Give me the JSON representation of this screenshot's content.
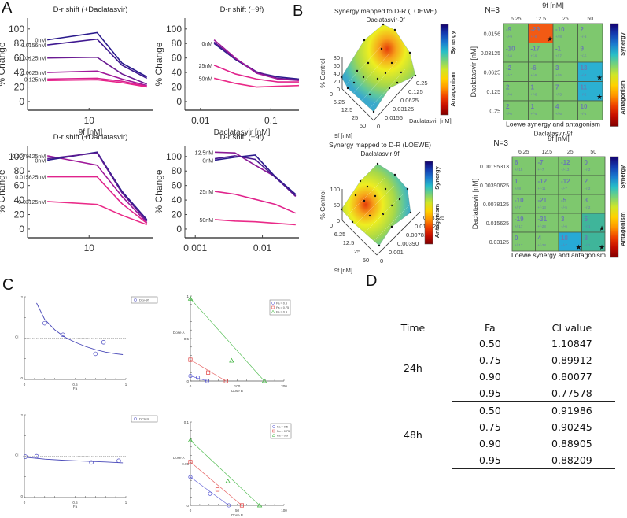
{
  "panels": {
    "A": "A",
    "B": "B",
    "C": "C",
    "D": "D"
  },
  "chart_data": [
    {
      "id": "A1",
      "type": "line",
      "title": "D-r shift (+Daclatasvir)",
      "xlabel": "9f [nM]",
      "ylabel": "% Change",
      "xscale": "log",
      "xticks": [
        "10"
      ],
      "yticks": [
        0,
        20,
        40,
        60,
        80,
        100
      ],
      "ylim": [
        -12,
        115
      ],
      "x": [
        3.125,
        12.5,
        25,
        50
      ],
      "series": [
        {
          "name": "0nM",
          "color": "#2a1a8c",
          "values": [
            85,
            95,
            53,
            34
          ]
        },
        {
          "name": "0.0156nM",
          "color": "#3f1890",
          "values": [
            78,
            86,
            50,
            32
          ]
        },
        {
          "name": "0.03125nM",
          "color": "#6a1a92",
          "values": [
            60,
            61,
            38,
            24
          ]
        },
        {
          "name": "0.0625nM",
          "color": "#a0199a",
          "values": [
            40,
            42,
            31,
            22
          ]
        },
        {
          "name": "0.125nM",
          "color": "#d8208f",
          "values": [
            31,
            32,
            28,
            21
          ]
        },
        {
          "name": "",
          "color": "#e8238a",
          "values": [
            29,
            30,
            26,
            20
          ]
        }
      ]
    },
    {
      "id": "A2",
      "type": "line",
      "title": "D-r shift (+9f)",
      "xlabel": "Daclatasvir [nM]",
      "ylabel": "% Change",
      "xscale": "log",
      "xticks": [
        "0.01",
        "0.1"
      ],
      "yticks": [
        0,
        20,
        40,
        60,
        80,
        100
      ],
      "ylim": [
        -12,
        115
      ],
      "x": [
        0.0156,
        0.03125,
        0.0625,
        0.125,
        0.25
      ],
      "series": [
        {
          "name": "0nM",
          "color": "#2a1a8c",
          "values": [
            80,
            58,
            40,
            34,
            31
          ]
        },
        {
          "name": "",
          "color": "#5b1a92",
          "values": [
            82,
            59,
            41,
            32,
            30
          ]
        },
        {
          "name": "",
          "color": "#a0199a",
          "values": [
            85,
            60,
            39,
            31,
            29
          ]
        },
        {
          "name": "25nM",
          "color": "#e0238c",
          "values": [
            50,
            38,
            31,
            27,
            27
          ]
        },
        {
          "name": "50nM",
          "color": "#ea2a88",
          "values": [
            32,
            25,
            20,
            21,
            22
          ]
        }
      ]
    },
    {
      "id": "A3",
      "type": "line",
      "title": "D-r shift (+Daclatasvir)",
      "xlabel": "9f [nM]",
      "ylabel": "% Change",
      "xscale": "log",
      "xticks": [
        "10"
      ],
      "yticks": [
        0,
        20,
        40,
        60,
        80,
        100
      ],
      "ylim": [
        -12,
        115
      ],
      "x": [
        3.125,
        12.5,
        25,
        50
      ],
      "series": [
        {
          "name": "0.0078125nM",
          "color": "#a0199a",
          "values": [
            101,
            88,
            45,
            9
          ]
        },
        {
          "name": "0nM",
          "color": "#2a1a8c",
          "values": [
            95,
            106,
            52,
            13
          ]
        },
        {
          "name": "",
          "color": "#5b1a92",
          "values": [
            97,
            105,
            50,
            11
          ]
        },
        {
          "name": "0.015625nM",
          "color": "#e0238c",
          "values": [
            72,
            72,
            35,
            8
          ]
        },
        {
          "name": "0.03125nM",
          "color": "#ea2a88",
          "values": [
            38,
            34,
            19,
            6
          ]
        }
      ]
    },
    {
      "id": "A4",
      "type": "line",
      "title": "D-r shift (+9f)",
      "xlabel": "Daclatasvir [nM]",
      "ylabel": "% Change",
      "xscale": "log",
      "xticks": [
        "0.001",
        "0.01"
      ],
      "yticks": [
        0,
        20,
        40,
        60,
        80,
        100
      ],
      "ylim": [
        -12,
        115
      ],
      "x": [
        0.00195313,
        0.00390625,
        0.0078125,
        0.015625,
        0.03125
      ],
      "series": [
        {
          "name": "12.5nM",
          "color": "#8a1a96",
          "values": [
            106,
            105,
            88,
            72,
            45
          ]
        },
        {
          "name": "0nM",
          "color": "#2a1a8c",
          "values": [
            95,
            99,
            102,
            72,
            48
          ]
        },
        {
          "name": "",
          "color": "#4a1a90",
          "values": [
            97,
            101,
            96,
            71,
            46
          ]
        },
        {
          "name": "25nM",
          "color": "#e0238c",
          "values": [
            52,
            48,
            41,
            34,
            22
          ]
        },
        {
          "name": "50nM",
          "color": "#ea2a88",
          "values": [
            13,
            11,
            10,
            8,
            6
          ]
        }
      ]
    },
    {
      "id": "B1",
      "type": "heatmap",
      "title": "Synergy mapped to D-R (LOEWE)",
      "subtitle": "Daclatasvir-9f",
      "zlabel": "% Control",
      "xlabel": "9f [nM]",
      "ylabel": "Daclatasvir [nM]",
      "zticks": [
        "0",
        "20",
        "40",
        "60",
        "80"
      ],
      "xticks": [
        "0",
        "6.25",
        "12.5",
        "25",
        "50"
      ],
      "yticks": [
        "0",
        "0.0156",
        "0.03125",
        "0.0625",
        "0.125",
        "0.25"
      ],
      "colorbar": {
        "top": "Synergy",
        "bottom": "Antagonism"
      }
    },
    {
      "id": "B2",
      "type": "heatmap",
      "title": "N=3",
      "xlabel": "9f [nM]",
      "ylabel": "Daclatasvir [nM]",
      "footer": "Loewe synergy and antagonism",
      "subtitle": "Daclatasvir-9f",
      "columns": [
        "6.25",
        "12.5",
        "25",
        "50"
      ],
      "rows": [
        "0.0156",
        "0.03125",
        "0.0625",
        "0.125",
        "0.25"
      ],
      "values": [
        [
          -9,
          -29,
          -10,
          2
        ],
        [
          -10,
          -17,
          -1,
          9
        ],
        [
          -2,
          -6,
          3,
          13
        ],
        [
          2,
          1,
          7,
          11
        ],
        [
          2,
          1,
          4,
          10
        ]
      ],
      "errors": [
        [
          "+/-9",
          "+/-8",
          "+/-8",
          "+/-6"
        ],
        [
          "+/-8",
          "+/-9",
          "+/-7",
          "+/-5"
        ],
        [
          "+/-7",
          "+/-5",
          "+/-5",
          "+/-3"
        ],
        [
          "+/-6",
          "+/-6",
          "+/-5",
          "+/-2"
        ],
        [
          "+/-6",
          "+/-4",
          "+/-6",
          "+/-4"
        ]
      ],
      "significant": [
        [
          false,
          true,
          false,
          false
        ],
        [
          false,
          false,
          false,
          false
        ],
        [
          false,
          false,
          false,
          true
        ],
        [
          false,
          false,
          false,
          true
        ],
        [
          false,
          false,
          false,
          false
        ]
      ],
      "colorbar": {
        "top": "Synergy",
        "bottom": "Antagonism"
      }
    },
    {
      "id": "B3",
      "type": "heatmap",
      "title": "Synergy mapped to D-R (LOEWE)",
      "subtitle": "Daclatasvir-9f",
      "zlabel": "% Control",
      "xlabel": "9f [nM]",
      "ylabel": "Daclatasvir [nM]",
      "zticks": [
        "0",
        "50",
        "100"
      ],
      "xticks": [
        "0",
        "6.25",
        "12.5",
        "25",
        "50"
      ],
      "yticks": [
        "0",
        "0.001",
        "0.00390",
        "0.0078125",
        "0.015625",
        "0.03125"
      ],
      "colorbar": {
        "top": "Synergy",
        "bottom": "Antagonism"
      }
    },
    {
      "id": "B4",
      "type": "heatmap",
      "title": "N=3",
      "xlabel": "9f [nM]",
      "ylabel": "Daclatasvir [nM]",
      "footer": "Loewe synergy and antagonism",
      "subtitle": "Daclatasvir-9f",
      "columns": [
        "6.25",
        "12.5",
        "25",
        "50"
      ],
      "rows": [
        "0.00195313",
        "0.00390625",
        "0.0078125",
        "0.015625",
        "0.03125"
      ],
      "values": [
        [
          6,
          -7,
          -12,
          0
        ],
        [
          1,
          -12,
          -12,
          2
        ],
        [
          -10,
          -21,
          -5,
          3
        ],
        [
          -19,
          -31,
          3,
          5
        ],
        [
          0,
          4,
          18,
          8
        ]
      ],
      "errors": [
        [
          "+/-15",
          "+/-7",
          "+/-13",
          "+/-2"
        ],
        [
          "+/-8",
          "+/-11",
          "+/-7",
          "+/-2"
        ],
        [
          "+/-7",
          "+/-13",
          "+/-5",
          "+/-2"
        ],
        [
          "+/-17",
          "+/-28",
          "+/-6",
          "+/-1"
        ],
        [
          "+/-17",
          "+/-28",
          "+/-7",
          "+/-1"
        ]
      ],
      "significant": [
        [
          false,
          false,
          false,
          false
        ],
        [
          false,
          false,
          false,
          false
        ],
        [
          false,
          false,
          false,
          false
        ],
        [
          false,
          false,
          false,
          true
        ],
        [
          false,
          false,
          true,
          true
        ]
      ],
      "colorbar": {
        "top": "Synergy",
        "bottom": "Antagonism"
      }
    },
    {
      "id": "C1",
      "type": "scatter",
      "xlabel": "Fa",
      "ylabel": "CI",
      "xlim": [
        0,
        1
      ],
      "ylim": [
        0,
        2
      ],
      "xticks": [
        "0",
        "0.5",
        "1"
      ],
      "yticks": [
        "0",
        "2"
      ],
      "legend": "Dcv-9f",
      "reference_line": 1,
      "points": [
        [
          0.2,
          1.36
        ],
        [
          0.38,
          1.08
        ],
        [
          0.7,
          0.62
        ],
        [
          0.78,
          0.9
        ]
      ],
      "curve": [
        [
          0.12,
          1.85
        ],
        [
          0.2,
          1.45
        ],
        [
          0.3,
          1.2
        ],
        [
          0.4,
          1.02
        ],
        [
          0.5,
          0.9
        ],
        [
          0.6,
          0.8
        ],
        [
          0.7,
          0.72
        ],
        [
          0.8,
          0.66
        ],
        [
          0.9,
          0.62
        ],
        [
          0.97,
          0.6
        ]
      ]
    },
    {
      "id": "C2",
      "type": "scatter",
      "xlabel": "Dose B",
      "ylabel": "Dose A",
      "xlim": [
        0,
        200
      ],
      "ylim": [
        0,
        1
      ],
      "xticks": [
        "0",
        "100",
        "200"
      ],
      "yticks": [
        "0",
        "0.5",
        "1"
      ],
      "legend": [
        "Fa = 0.5",
        "Fa = 0.75",
        "Fa = 0.9"
      ],
      "series": [
        {
          "name": "Fa = 0.5",
          "color": "#4a4ad0",
          "marker": "circle",
          "line": [
            [
              0,
              0.06
            ],
            [
              36,
              0
            ]
          ],
          "points": [
            [
              0,
              0.06
            ],
            [
              16,
              0.04
            ],
            [
              36,
              0
            ]
          ]
        },
        {
          "name": "Fa = 0.75",
          "color": "#e04040",
          "marker": "square",
          "line": [
            [
              0,
              0.25
            ],
            [
              76,
              0
            ]
          ],
          "points": [
            [
              0,
              0.25
            ],
            [
              38,
              0.1
            ],
            [
              76,
              0
            ]
          ]
        },
        {
          "name": "Fa = 0.9",
          "color": "#30b030",
          "marker": "triangle",
          "line": [
            [
              0,
              0.97
            ],
            [
              158,
              0
            ]
          ],
          "points": [
            [
              0,
              0.97
            ],
            [
              88,
              0.24
            ],
            [
              158,
              0
            ]
          ]
        }
      ]
    },
    {
      "id": "C3",
      "type": "scatter",
      "xlabel": "Fa",
      "ylabel": "CI",
      "xlim": [
        0,
        1
      ],
      "ylim": [
        0,
        2
      ],
      "xticks": [
        "0",
        "0.5",
        "1"
      ],
      "yticks": [
        "0",
        "2"
      ],
      "legend": "DCV-9f",
      "reference_line": 1,
      "points": [
        [
          0.01,
          0.99
        ],
        [
          0.12,
          1.0
        ],
        [
          0.66,
          0.85
        ],
        [
          0.93,
          0.89
        ]
      ],
      "curve": [
        [
          0.03,
          0.97
        ],
        [
          0.2,
          0.93
        ],
        [
          0.4,
          0.9
        ],
        [
          0.6,
          0.88
        ],
        [
          0.8,
          0.86
        ],
        [
          0.97,
          0.84
        ]
      ]
    },
    {
      "id": "C4",
      "type": "scatter",
      "xlabel": "Dose B",
      "ylabel": "Dose A",
      "xlim": [
        0,
        100
      ],
      "ylim": [
        0,
        0.1
      ],
      "xticks": [
        "0",
        "50",
        "100"
      ],
      "yticks": [
        "0",
        "0.05",
        "0.1"
      ],
      "legend": [
        "Fa = 0.5",
        "Fa = 0.75",
        "Fa = 0.9"
      ],
      "series": [
        {
          "name": "Fa = 0.5",
          "color": "#4a4ad0",
          "marker": "circle",
          "line": [
            [
              0,
              0.034
            ],
            [
              41,
              0
            ]
          ],
          "points": [
            [
              0,
              0.034
            ],
            [
              21,
              0.014
            ],
            [
              41,
              0
            ]
          ]
        },
        {
          "name": "Fa = 0.75",
          "color": "#e04040",
          "marker": "square",
          "line": [
            [
              0,
              0.052
            ],
            [
              55,
              0
            ]
          ],
          "points": [
            [
              0,
              0.052
            ],
            [
              29,
              0.019
            ],
            [
              55,
              0
            ]
          ]
        },
        {
          "name": "Fa = 0.9",
          "color": "#30b030",
          "marker": "triangle",
          "line": [
            [
              0,
              0.078
            ],
            [
              74,
              0
            ]
          ],
          "points": [
            [
              0,
              0.078
            ],
            [
              40,
              0.029
            ],
            [
              74,
              0
            ]
          ]
        }
      ]
    },
    {
      "id": "D",
      "type": "table",
      "columns": [
        "Time",
        "Fa",
        "CI value"
      ],
      "groups": [
        {
          "time": "24h",
          "rows": [
            [
              "0.50",
              "1.10847"
            ],
            [
              "0.75",
              "0.89912"
            ],
            [
              "0.90",
              "0.80077"
            ],
            [
              "0.95",
              "0.77578"
            ]
          ]
        },
        {
          "time": "48h",
          "rows": [
            [
              "0.50",
              "0.91986"
            ],
            [
              "0.75",
              "0.90245"
            ],
            [
              "0.90",
              "0.88905"
            ],
            [
              "0.95",
              "0.88209"
            ]
          ]
        }
      ]
    }
  ]
}
